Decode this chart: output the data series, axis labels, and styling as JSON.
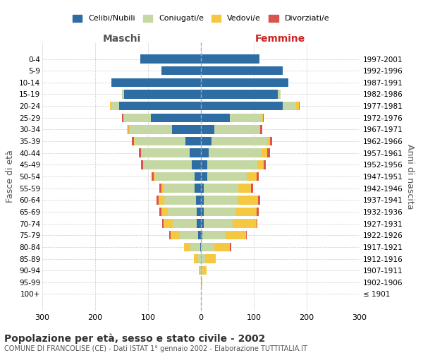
{
  "age_groups": [
    "100+",
    "95-99",
    "90-94",
    "85-89",
    "80-84",
    "75-79",
    "70-74",
    "65-69",
    "60-64",
    "55-59",
    "50-54",
    "45-49",
    "40-44",
    "35-39",
    "30-34",
    "25-29",
    "20-24",
    "15-19",
    "10-14",
    "5-9",
    "0-4"
  ],
  "birth_years": [
    "≤ 1901",
    "1902-1906",
    "1907-1911",
    "1912-1916",
    "1917-1921",
    "1922-1926",
    "1927-1931",
    "1932-1936",
    "1937-1941",
    "1942-1946",
    "1947-1951",
    "1952-1956",
    "1957-1961",
    "1962-1966",
    "1967-1971",
    "1972-1976",
    "1977-1981",
    "1982-1986",
    "1987-1991",
    "1992-1996",
    "1997-2001"
  ],
  "maschi": {
    "celibi": [
      0,
      0,
      0,
      0,
      2,
      5,
      8,
      8,
      10,
      12,
      12,
      18,
      22,
      30,
      55,
      95,
      155,
      145,
      170,
      75,
      115
    ],
    "coniugati": [
      0,
      0,
      2,
      5,
      18,
      35,
      45,
      55,
      60,
      58,
      75,
      90,
      90,
      95,
      80,
      50,
      15,
      5,
      0,
      0,
      0
    ],
    "vedovi": [
      0,
      0,
      2,
      8,
      12,
      18,
      18,
      12,
      10,
      5,
      2,
      2,
      2,
      2,
      2,
      2,
      2,
      0,
      0,
      0,
      0
    ],
    "divorziati": [
      0,
      0,
      0,
      0,
      0,
      2,
      2,
      4,
      4,
      4,
      4,
      4,
      4,
      4,
      2,
      2,
      0,
      0,
      0,
      0,
      0
    ]
  },
  "femmine": {
    "nubili": [
      0,
      0,
      0,
      0,
      0,
      2,
      5,
      5,
      5,
      5,
      12,
      12,
      15,
      20,
      25,
      55,
      155,
      145,
      165,
      155,
      110
    ],
    "coniugate": [
      0,
      0,
      2,
      8,
      25,
      45,
      55,
      60,
      65,
      65,
      75,
      95,
      100,
      105,
      85,
      60,
      25,
      5,
      0,
      0,
      0
    ],
    "vedove": [
      0,
      2,
      8,
      20,
      30,
      38,
      45,
      40,
      38,
      25,
      18,
      12,
      10,
      5,
      2,
      2,
      5,
      0,
      0,
      0,
      0
    ],
    "divorziate": [
      0,
      0,
      0,
      0,
      2,
      2,
      2,
      4,
      4,
      4,
      4,
      4,
      5,
      5,
      4,
      2,
      2,
      0,
      0,
      0,
      0
    ]
  },
  "colors": {
    "celibi": "#2e6da4",
    "coniugati": "#c5d8a4",
    "vedovi": "#f5c842",
    "divorziati": "#d9534f"
  },
  "legend_labels": [
    "Celibi/Nubili",
    "Coniugati/e",
    "Vedovi/e",
    "Divorziati/e"
  ],
  "title": "Popolazione per età, sesso e stato civile - 2002",
  "subtitle": "COMUNE DI FRANCOLISE (CE) - Dati ISTAT 1° gennaio 2002 - Elaborazione TUTTITALIA.IT",
  "xlabel_left": "Maschi",
  "xlabel_right": "Femmine",
  "ylabel_left": "Fasce di età",
  "ylabel_right": "Anni di nascita",
  "xmin": -300,
  "xmax": 300,
  "bg_color": "#ffffff",
  "grid_color": "#cccccc"
}
